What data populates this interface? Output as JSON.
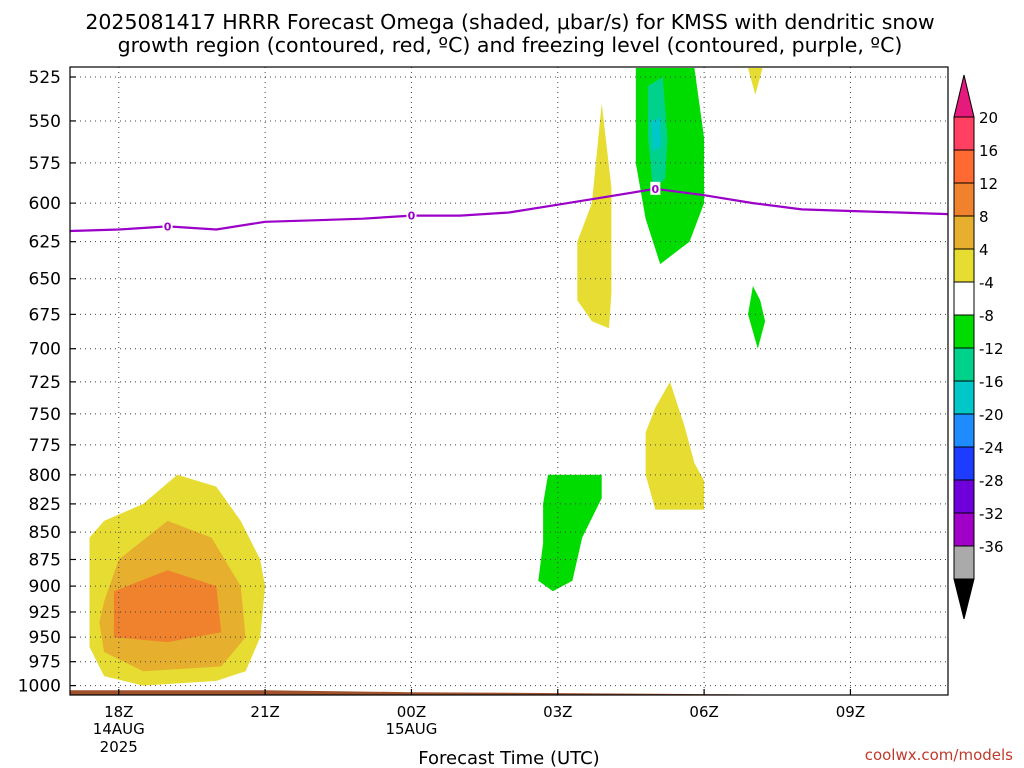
{
  "title_line1": "2025081417 HRRR Forecast Omega (shaded, μbar/s) for KMSS with dendritic snow",
  "title_line2": "growth region (contoured, red, ºC) and freezing level (contoured, purple, ºC)",
  "watermark": "coolwx.com/models",
  "colors": {
    "y4_8": "#e6dc32",
    "y8_12": "#e6af2d",
    "y12_16": "#f0822d",
    "g4_8": "#00dc00",
    "t8_12": "#00d28c",
    "t12_16": "#00c8c8",
    "freezing": "#9b00c8",
    "ground": "#a0522d"
  },
  "chart_data": {
    "type": "heatmap",
    "xlabel": "Forecast Time (UTC)",
    "ylabel": "",
    "x_domain": [
      -1,
      17
    ],
    "ylim": [
      525,
      1010
    ],
    "y_ticks": [
      525,
      550,
      575,
      600,
      625,
      650,
      675,
      700,
      725,
      750,
      775,
      800,
      825,
      850,
      875,
      900,
      925,
      950,
      975,
      1000
    ],
    "x_ticks": [
      {
        "x": 0,
        "label": "18Z",
        "sub1": "14AUG",
        "sub2": "2025"
      },
      {
        "x": 3,
        "label": "21Z",
        "sub1": "",
        "sub2": ""
      },
      {
        "x": 6,
        "label": "00Z",
        "sub1": "15AUG",
        "sub2": ""
      },
      {
        "x": 9,
        "label": "03Z",
        "sub1": "",
        "sub2": ""
      },
      {
        "x": 12,
        "label": "06Z",
        "sub1": "",
        "sub2": ""
      },
      {
        "x": 15,
        "label": "09Z",
        "sub1": "",
        "sub2": ""
      }
    ],
    "grid": true,
    "colorbar": {
      "labels": [
        "20",
        "16",
        "12",
        "8",
        "4",
        "-4",
        "-8",
        "-12",
        "-16",
        "-20",
        "-24",
        "-28",
        "-32",
        "-36"
      ],
      "bins": [
        "#ff4060",
        "#ff6a32",
        "#f0822d",
        "#e6af2d",
        "#e6dc32",
        "#ffffff",
        "#00dc00",
        "#00d28c",
        "#00c8c8",
        "#1e8cff",
        "#1e3cff",
        "#6e00dc",
        "#a000c8",
        "#aaaaaa"
      ],
      "top_arrow_color": "#e6197d",
      "bottom_arrow_color": "#000000"
    },
    "series": [
      {
        "kind": "omega",
        "level": "4 to 8",
        "color": "y4_8",
        "points": [
          [
            -0.6,
            855
          ],
          [
            -0.3,
            840
          ],
          [
            0.5,
            825
          ],
          [
            1.2,
            800
          ],
          [
            2,
            810
          ],
          [
            2.5,
            840
          ],
          [
            2.9,
            875
          ],
          [
            3,
            900
          ],
          [
            2.9,
            950
          ],
          [
            2.6,
            985
          ],
          [
            2,
            995
          ],
          [
            0.5,
            1000
          ],
          [
            -0.3,
            990
          ],
          [
            -0.6,
            960
          ],
          [
            -0.6,
            900
          ]
        ]
      },
      {
        "kind": "omega",
        "level": "8 to 12",
        "color": "y8_12",
        "points": [
          [
            -0.3,
            915
          ],
          [
            0,
            875
          ],
          [
            1,
            840
          ],
          [
            1.9,
            855
          ],
          [
            2.5,
            900
          ],
          [
            2.6,
            950
          ],
          [
            2.1,
            980
          ],
          [
            0.5,
            985
          ],
          [
            -0.3,
            965
          ],
          [
            -0.4,
            935
          ]
        ]
      },
      {
        "kind": "omega",
        "level": "12 to 16",
        "color": "y12_16",
        "points": [
          [
            -0.1,
            950
          ],
          [
            -0.1,
            905
          ],
          [
            1,
            885
          ],
          [
            2,
            900
          ],
          [
            2.1,
            945
          ],
          [
            1,
            955
          ]
        ]
      },
      {
        "kind": "omega",
        "level": "4 to 8",
        "color": "y4_8",
        "points": [
          [
            9.9,
            540
          ],
          [
            10.1,
            590
          ],
          [
            10.1,
            660
          ],
          [
            10.05,
            685
          ],
          [
            9.7,
            680
          ],
          [
            9.4,
            665
          ],
          [
            9.4,
            625
          ],
          [
            9.7,
            600
          ]
        ]
      },
      {
        "kind": "omega",
        "level": "4 to 8",
        "color": "y4_8",
        "points": [
          [
            11,
            745
          ],
          [
            11.3,
            725
          ],
          [
            11.6,
            760
          ],
          [
            11.8,
            790
          ],
          [
            12,
            805
          ],
          [
            12,
            830
          ],
          [
            11,
            830
          ],
          [
            10.8,
            800
          ],
          [
            10.8,
            765
          ]
        ]
      },
      {
        "kind": "omega",
        "level": "4 to 8",
        "color": "y4_8",
        "points": [
          [
            12.9,
            520
          ],
          [
            13.2,
            520
          ],
          [
            13.05,
            535
          ]
        ]
      },
      {
        "kind": "omega",
        "level": "-8 to -4",
        "color": "g4_8",
        "points": [
          [
            10.6,
            520
          ],
          [
            11.8,
            520
          ],
          [
            12,
            560
          ],
          [
            12,
            600
          ],
          [
            11.7,
            625
          ],
          [
            11.1,
            640
          ],
          [
            10.8,
            610
          ],
          [
            10.6,
            575
          ]
        ]
      },
      {
        "kind": "omega",
        "level": "-12 to -8",
        "color": "t8_12",
        "points": [
          [
            10.85,
            530
          ],
          [
            11.15,
            525
          ],
          [
            11.25,
            560
          ],
          [
            11.2,
            585
          ],
          [
            10.95,
            590
          ],
          [
            10.85,
            560
          ]
        ]
      },
      {
        "kind": "omega",
        "level": "-16 to -12",
        "color": "t12_16",
        "points": [
          [
            10.92,
            550
          ],
          [
            11.1,
            548
          ],
          [
            11.12,
            565
          ],
          [
            10.95,
            568
          ]
        ]
      },
      {
        "kind": "omega",
        "level": "-8 to -4",
        "color": "g4_8",
        "points": [
          [
            13,
            655
          ],
          [
            13.15,
            665
          ],
          [
            13.25,
            680
          ],
          [
            13.1,
            700
          ],
          [
            12.9,
            675
          ]
        ]
      },
      {
        "kind": "omega",
        "level": "-8 to -4",
        "color": "g4_8",
        "points": [
          [
            8.8,
            800
          ],
          [
            9.9,
            800
          ],
          [
            9.9,
            820
          ],
          [
            9.5,
            855
          ],
          [
            9.3,
            895
          ],
          [
            8.9,
            905
          ],
          [
            8.6,
            895
          ],
          [
            8.7,
            860
          ],
          [
            8.7,
            825
          ]
        ]
      }
    ],
    "freezing_level": {
      "label": "0",
      "x": [
        -1,
        0,
        1,
        2,
        3,
        4,
        5,
        6,
        7,
        8,
        9,
        10,
        11,
        12,
        13,
        14,
        15,
        16,
        17
      ],
      "y": [
        618,
        617,
        615,
        617,
        612,
        611,
        610,
        608,
        608,
        606,
        601,
        596,
        591,
        595,
        600,
        604,
        605,
        606,
        607
      ],
      "label_x": [
        1,
        6,
        11
      ]
    },
    "ground": {
      "x": [
        -1,
        0,
        3,
        6,
        9,
        12,
        15,
        17
      ],
      "y": [
        1005,
        1005,
        1005,
        1007,
        1008,
        1009,
        1010,
        1010
      ]
    }
  }
}
